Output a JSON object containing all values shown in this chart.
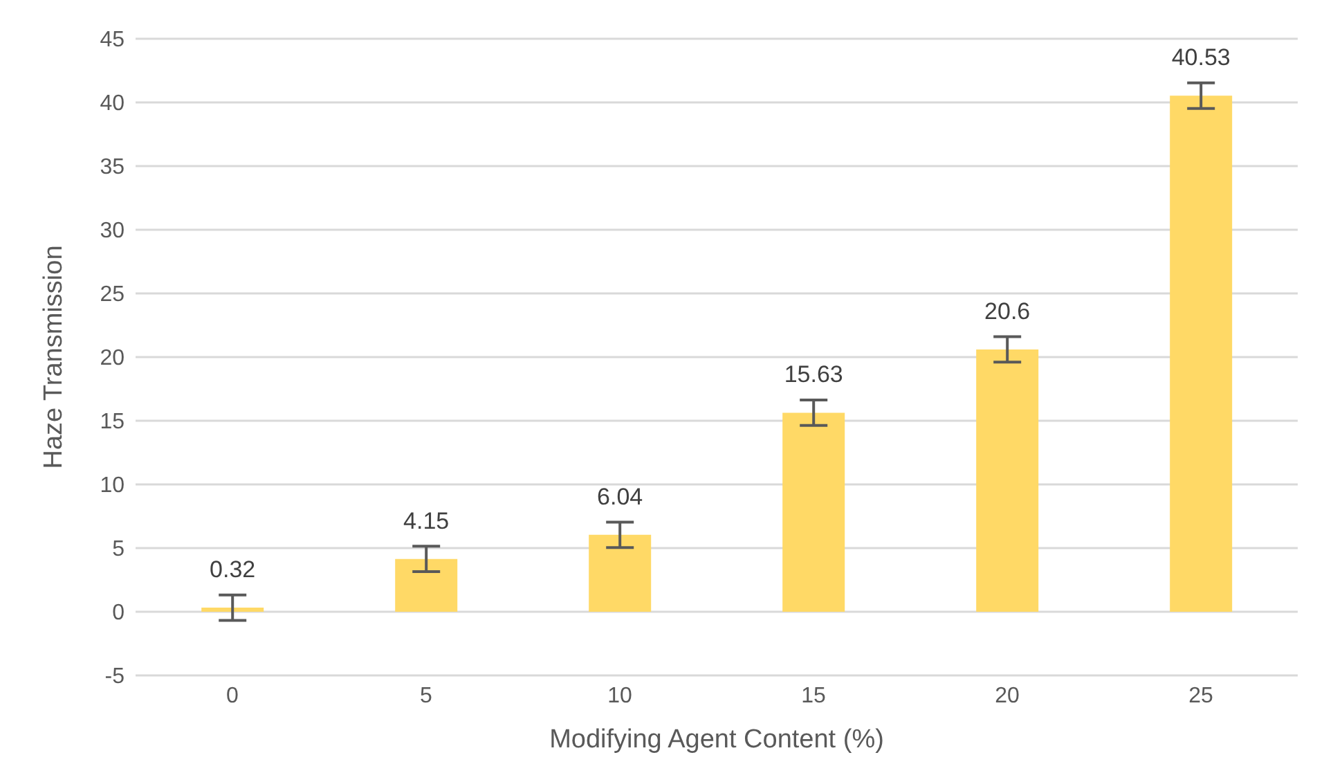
{
  "chart_data": {
    "type": "bar",
    "xlabel": "Modifying Agent Content (%)",
    "ylabel": "Haze Transmission",
    "categories": [
      "0",
      "5",
      "10",
      "15",
      "20",
      "25"
    ],
    "series": [
      {
        "color": "#ffd966",
        "values": [
          0.32,
          4.15,
          6.04,
          15.63,
          20.6,
          40.53
        ],
        "errors": [
          1,
          1,
          1,
          1,
          1,
          1
        ]
      }
    ],
    "ylim": [
      -5,
      45
    ],
    "yticks": [
      -5,
      0,
      5,
      10,
      15,
      20,
      25,
      30,
      35,
      40,
      45
    ],
    "grid": "y",
    "data_labels": true,
    "legend": false
  }
}
